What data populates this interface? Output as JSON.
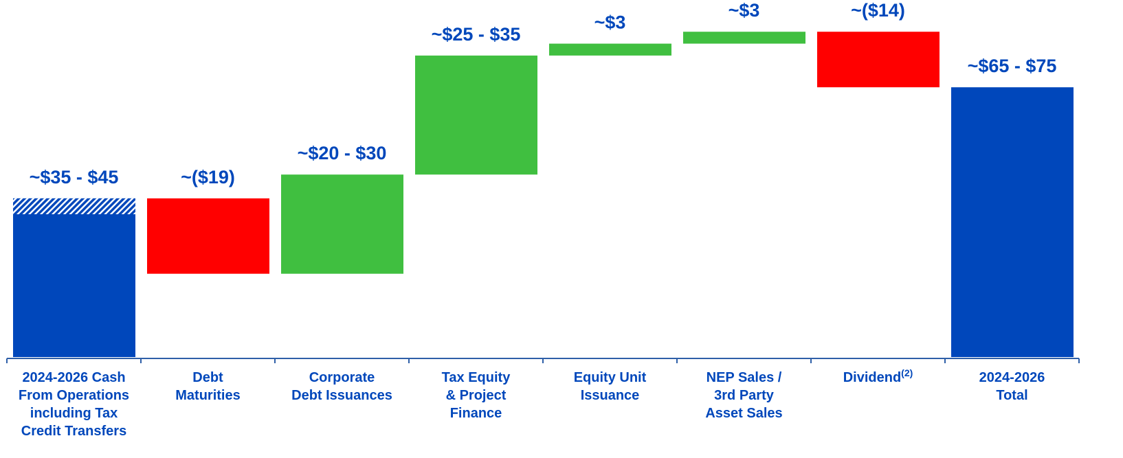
{
  "chart_data": {
    "type": "waterfall",
    "categories": [
      [
        "2024-2026 Cash",
        "From Operations",
        "including Tax",
        "Credit Transfers"
      ],
      [
        "Debt",
        "Maturities"
      ],
      [
        "Corporate",
        "Debt Issuances"
      ],
      [
        "Tax Equity",
        "& Project",
        "Finance"
      ],
      [
        "Equity Unit",
        "Issuance"
      ],
      [
        "NEP Sales /",
        "3rd Party",
        "Asset Sales"
      ],
      [
        "Dividend"
      ],
      [
        "2024-2026",
        "Total"
      ]
    ],
    "category_superscripts": [
      null,
      null,
      null,
      null,
      null,
      null,
      "(2)",
      null
    ],
    "values": [
      40,
      -19,
      25,
      30,
      3,
      3,
      -14,
      68
    ],
    "value_labels": [
      "~$35 - $45",
      "~($19)",
      "~$20 - $30",
      "~$25 - $35",
      "~$3",
      "~$3",
      "~($14)",
      "~$65 - $75"
    ],
    "is_total": [
      true,
      false,
      false,
      false,
      false,
      false,
      false,
      true
    ],
    "hatched": [
      4,
      null,
      null,
      null,
      null,
      null,
      null,
      null
    ],
    "colors": [
      "#0047bb",
      "#ff0000",
      "#40bf40",
      "#40bf40",
      "#40bf40",
      "#40bf40",
      "#ff0000",
      "#0047bb"
    ],
    "ylim": [
      0,
      90
    ]
  }
}
